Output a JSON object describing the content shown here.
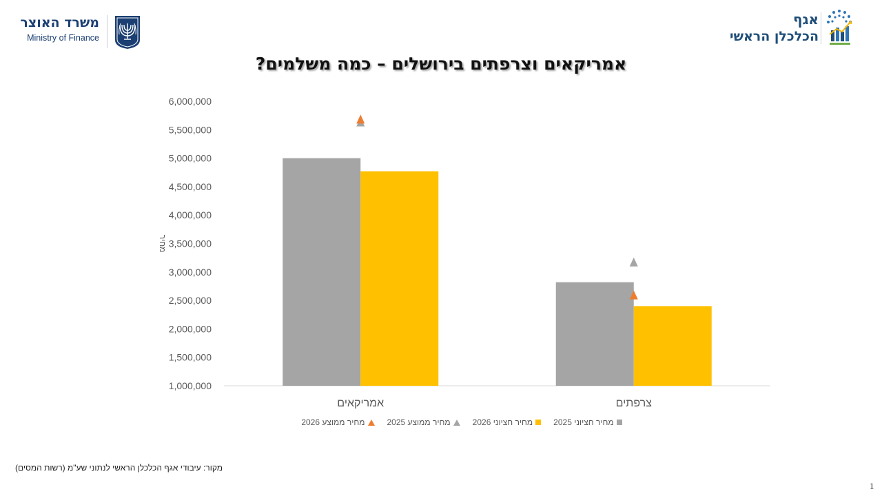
{
  "header": {
    "mof_name_he": "משרד האוצר",
    "mof_name_en": "Ministry of Finance",
    "ce_line1": "אגף",
    "ce_line2": "הכלכלן הראשי"
  },
  "slide": {
    "title": "אמריקאים וצרפתים בירושלים – כמה משלמים?",
    "source": "מקור: עיבודי אגף הכלכלן הראשי לנתוני שע\"מ (רשות המסים)",
    "page_number": "1"
  },
  "colors": {
    "median_2025": "#a5a5a5",
    "median_2026": "#ffc000",
    "avg_2025": "#a5a5a5",
    "avg_2026": "#ed7d31",
    "brand_blue": "#1f4e79"
  },
  "chart_data": {
    "type": "bar",
    "ylabel": "מחיר",
    "xlabel": "",
    "ylim": [
      1000000,
      6000000
    ],
    "yticks": [
      1000000,
      1500000,
      2000000,
      2500000,
      3000000,
      3500000,
      4000000,
      4500000,
      5000000,
      5500000,
      6000000
    ],
    "ytick_labels": [
      "1,000,000",
      "1,500,000",
      "2,000,000",
      "2,500,000",
      "3,000,000",
      "3,500,000",
      "4,000,000",
      "4,500,000",
      "5,000,000",
      "5,500,000",
      "6,000,000"
    ],
    "categories": [
      "אמריקאים",
      "צרפתים"
    ],
    "series": [
      {
        "name": "מחיר חציוני 2025",
        "kind": "bar",
        "color": "#a5a5a5",
        "values": [
          5000000,
          2820000
        ]
      },
      {
        "name": "מחיר חציוני 2026",
        "kind": "bar",
        "color": "#ffc000",
        "values": [
          4770000,
          2400000
        ]
      },
      {
        "name": "מחיר ממוצע 2025",
        "kind": "triangle",
        "color": "#a5a5a5",
        "values": [
          5630000,
          3170000
        ]
      },
      {
        "name": "מחיר ממוצע 2026",
        "kind": "triangle",
        "color": "#ed7d31",
        "values": [
          5680000,
          2590000
        ]
      }
    ],
    "legend_position": "bottom",
    "grid": false
  }
}
